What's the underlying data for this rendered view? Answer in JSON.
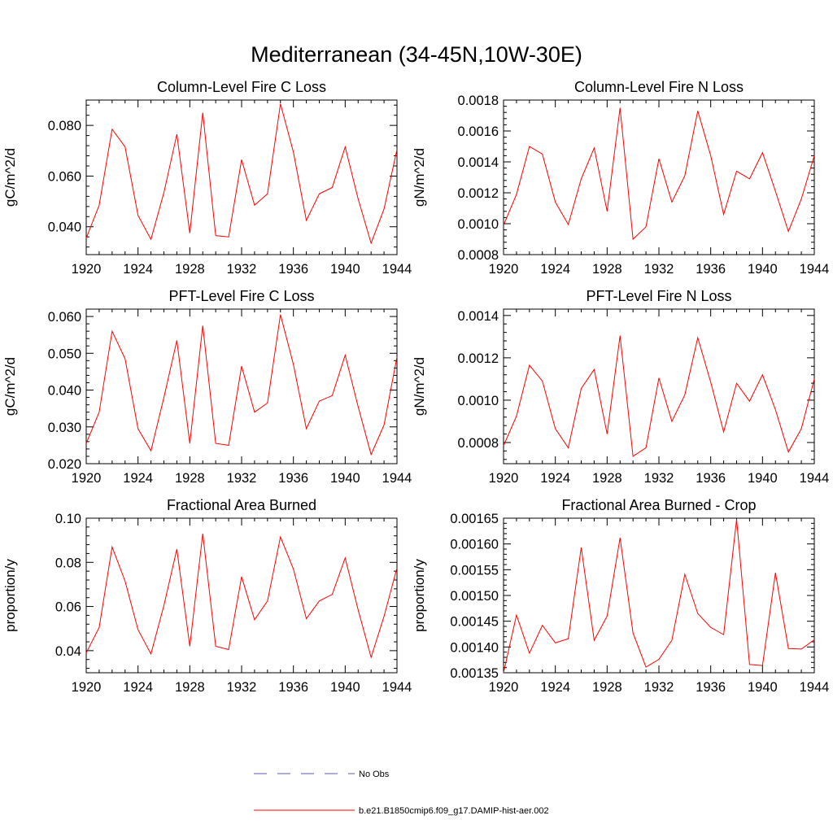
{
  "title": "Mediterranean (34-45N,10W-30E)",
  "legend": [
    {
      "label": "No Obs",
      "color": "#5a5aa8",
      "dashed": true
    },
    {
      "label": "b.e21.B1850cmip6.f09_g17.DAMIP-hist-aer.002",
      "color": "#ff0000",
      "dashed": false
    }
  ],
  "chart_data": [
    {
      "type": "line",
      "title": "Column-Level Fire C Loss",
      "ylabel": "gC/m^2/d",
      "xlim": [
        1920,
        1944
      ],
      "ylim": [
        0.029,
        0.09
      ],
      "xticks": [
        1920,
        1924,
        1928,
        1932,
        1936,
        1940,
        1944
      ],
      "xtick_labels": [
        "1920",
        "1924",
        "1928",
        "1932",
        "1936",
        "1940",
        "1944"
      ],
      "yticks": [
        0.04,
        0.06,
        0.08
      ],
      "ytick_labels": [
        "0.040",
        "0.060",
        "0.080"
      ],
      "series": [
        {
          "color": "#ff0000",
          "x": [
            1920,
            1921,
            1922,
            1923,
            1924,
            1925,
            1926,
            1927,
            1928,
            1929,
            1930,
            1931,
            1932,
            1933,
            1934,
            1935,
            1936,
            1937,
            1938,
            1939,
            1940,
            1941,
            1942,
            1943,
            1944
          ],
          "y": [
            0.0355,
            0.0485,
            0.0785,
            0.0715,
            0.0445,
            0.035,
            0.0535,
            0.0765,
            0.0375,
            0.085,
            0.0365,
            0.036,
            0.0665,
            0.0485,
            0.053,
            0.0885,
            0.0695,
            0.0425,
            0.053,
            0.0555,
            0.0715,
            0.051,
            0.0335,
            0.047,
            0.0705
          ]
        }
      ]
    },
    {
      "type": "line",
      "title": "Column-Level Fire N Loss",
      "ylabel": "gN/m^2/d",
      "xlim": [
        1920,
        1944
      ],
      "ylim": [
        0.0008,
        0.0018
      ],
      "xticks": [
        1920,
        1924,
        1928,
        1932,
        1936,
        1940,
        1944
      ],
      "xtick_labels": [
        "1920",
        "1924",
        "1928",
        "1932",
        "1936",
        "1940",
        "1944"
      ],
      "yticks": [
        0.0008,
        0.001,
        0.0012,
        0.0014,
        0.0016,
        0.0018
      ],
      "ytick_labels": [
        "0.0008",
        "0.0010",
        "0.0012",
        "0.0014",
        "0.0016",
        "0.0018"
      ],
      "series": [
        {
          "color": "#ff0000",
          "x": [
            1920,
            1921,
            1922,
            1923,
            1924,
            1925,
            1926,
            1927,
            1928,
            1929,
            1930,
            1931,
            1932,
            1933,
            1934,
            1935,
            1936,
            1937,
            1938,
            1939,
            1940,
            1941,
            1942,
            1943,
            1944
          ],
          "y": [
            0.00099,
            0.00119,
            0.0015,
            0.00145,
            0.00114,
            0.000995,
            0.00129,
            0.00149,
            0.00108,
            0.00175,
            0.0009,
            0.00098,
            0.00142,
            0.00114,
            0.00131,
            0.00173,
            0.00144,
            0.00106,
            0.00134,
            0.00129,
            0.00146,
            0.00121,
            0.00095,
            0.00116,
            0.00144
          ]
        }
      ]
    },
    {
      "type": "line",
      "title": "PFT-Level Fire C Loss",
      "ylabel": "gC/m^2/d",
      "xlim": [
        1920,
        1944
      ],
      "ylim": [
        0.02,
        0.062
      ],
      "xticks": [
        1920,
        1924,
        1928,
        1932,
        1936,
        1940,
        1944
      ],
      "xtick_labels": [
        "1920",
        "1924",
        "1928",
        "1932",
        "1936",
        "1940",
        "1944"
      ],
      "yticks": [
        0.02,
        0.03,
        0.04,
        0.05,
        0.06
      ],
      "ytick_labels": [
        "0.020",
        "0.030",
        "0.040",
        "0.050",
        "0.060"
      ],
      "series": [
        {
          "color": "#ff0000",
          "x": [
            1920,
            1921,
            1922,
            1923,
            1924,
            1925,
            1926,
            1927,
            1928,
            1929,
            1930,
            1931,
            1932,
            1933,
            1934,
            1935,
            1936,
            1937,
            1938,
            1939,
            1940,
            1941,
            1942,
            1943,
            1944
          ],
          "y": [
            0.0255,
            0.034,
            0.056,
            0.0485,
            0.0295,
            0.0235,
            0.038,
            0.0535,
            0.0255,
            0.0575,
            0.0255,
            0.025,
            0.0465,
            0.034,
            0.0365,
            0.0605,
            0.047,
            0.0295,
            0.037,
            0.0385,
            0.0495,
            0.0355,
            0.0225,
            0.0305,
            0.049
          ]
        }
      ]
    },
    {
      "type": "line",
      "title": "PFT-Level Fire N Loss",
      "ylabel": "gN/m^2/d",
      "xlim": [
        1920,
        1944
      ],
      "ylim": [
        0.0007,
        0.00143
      ],
      "xticks": [
        1920,
        1924,
        1928,
        1932,
        1936,
        1940,
        1944
      ],
      "xtick_labels": [
        "1920",
        "1924",
        "1928",
        "1932",
        "1936",
        "1940",
        "1944"
      ],
      "yticks": [
        0.0008,
        0.001,
        0.0012,
        0.0014
      ],
      "ytick_labels": [
        "0.0008",
        "0.0010",
        "0.0012",
        "0.0014"
      ],
      "series": [
        {
          "color": "#ff0000",
          "x": [
            1920,
            1921,
            1922,
            1923,
            1924,
            1925,
            1926,
            1927,
            1928,
            1929,
            1930,
            1931,
            1932,
            1933,
            1934,
            1935,
            1936,
            1937,
            1938,
            1939,
            1940,
            1941,
            1942,
            1943,
            1944
          ],
          "y": [
            0.000785,
            0.000925,
            0.001165,
            0.00109,
            0.000865,
            0.000775,
            0.001055,
            0.001145,
            0.00084,
            0.001305,
            0.000735,
            0.000775,
            0.001105,
            0.0009,
            0.001025,
            0.001295,
            0.001085,
            0.00085,
            0.00108,
            0.000995,
            0.00112,
            0.000955,
            0.000755,
            0.000865,
            0.0011
          ]
        }
      ]
    },
    {
      "type": "line",
      "title": "Fractional Area Burned",
      "ylabel": "proportion/y",
      "xlim": [
        1920,
        1944
      ],
      "ylim": [
        0.03,
        0.1
      ],
      "xticks": [
        1920,
        1924,
        1928,
        1932,
        1936,
        1940,
        1944
      ],
      "xtick_labels": [
        "1920",
        "1924",
        "1928",
        "1932",
        "1936",
        "1940",
        "1944"
      ],
      "yticks": [
        0.04,
        0.06,
        0.08,
        0.1
      ],
      "ytick_labels": [
        "0.04",
        "0.06",
        "0.08",
        "0.10"
      ],
      "series": [
        {
          "color": "#ff0000",
          "x": [
            1920,
            1921,
            1922,
            1923,
            1924,
            1925,
            1926,
            1927,
            1928,
            1929,
            1930,
            1931,
            1932,
            1933,
            1934,
            1935,
            1936,
            1937,
            1938,
            1939,
            1940,
            1941,
            1942,
            1943,
            1944
          ],
          "y": [
            0.039,
            0.0505,
            0.087,
            0.0715,
            0.0495,
            0.0385,
            0.0605,
            0.086,
            0.042,
            0.093,
            0.042,
            0.0405,
            0.0735,
            0.054,
            0.0625,
            0.0915,
            0.077,
            0.0545,
            0.0625,
            0.0655,
            0.082,
            0.0585,
            0.037,
            0.0555,
            0.0775
          ]
        }
      ]
    },
    {
      "type": "line",
      "title": "Fractional Area Burned - Crop",
      "ylabel": "proportion/y",
      "xlim": [
        1920,
        1944
      ],
      "ylim": [
        0.00135,
        0.00165
      ],
      "xticks": [
        1920,
        1924,
        1928,
        1932,
        1936,
        1940,
        1944
      ],
      "xtick_labels": [
        "1920",
        "1924",
        "1928",
        "1932",
        "1936",
        "1940",
        "1944"
      ],
      "yticks": [
        0.00135,
        0.0014,
        0.00145,
        0.0015,
        0.00155,
        0.0016,
        0.00165
      ],
      "ytick_labels": [
        "0.00135",
        "0.00140",
        "0.00145",
        "0.00150",
        "0.00155",
        "0.00160",
        "0.00165"
      ],
      "series": [
        {
          "color": "#ff0000",
          "x": [
            1920,
            1921,
            1922,
            1923,
            1924,
            1925,
            1926,
            1927,
            1928,
            1929,
            1930,
            1931,
            1932,
            1933,
            1934,
            1935,
            1936,
            1937,
            1938,
            1939,
            1940,
            1941,
            1942,
            1943,
            1944
          ],
          "y": [
            0.00135,
            0.001462,
            0.001388,
            0.001442,
            0.001408,
            0.001416,
            0.001593,
            0.001413,
            0.00146,
            0.001612,
            0.001427,
            0.001361,
            0.001376,
            0.001413,
            0.001541,
            0.001465,
            0.001438,
            0.001424,
            0.001648,
            0.001366,
            0.001364,
            0.001544,
            0.001397,
            0.001396,
            0.001414
          ]
        }
      ]
    }
  ]
}
